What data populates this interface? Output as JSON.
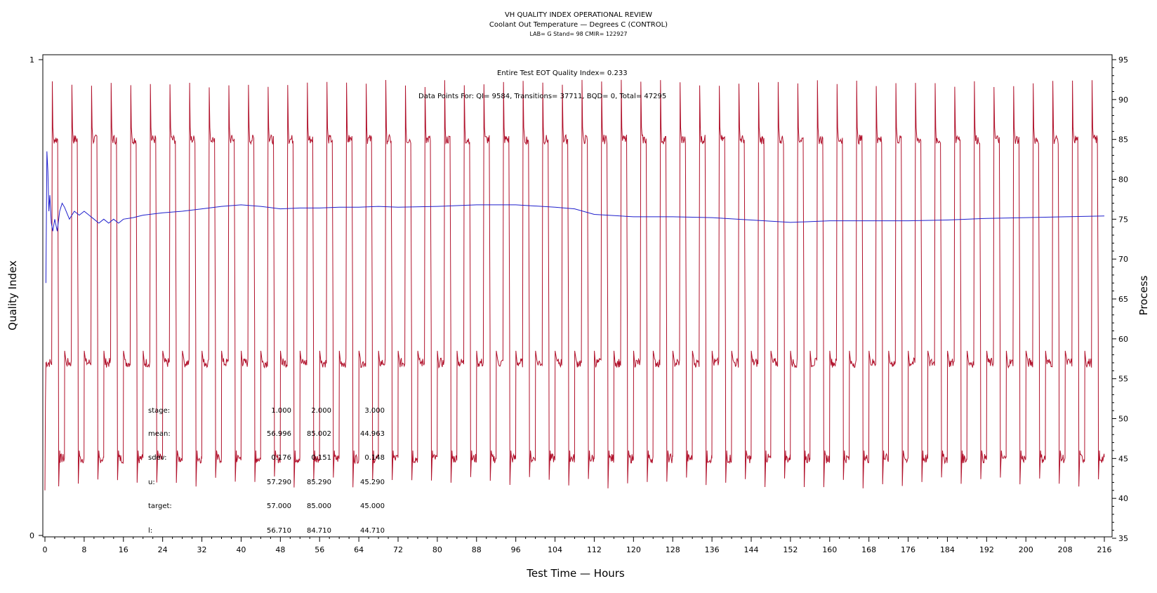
{
  "colors": {
    "process_line": "#b0102a",
    "quality_line": "#1f1fcc",
    "axis": "#000000",
    "background": "#ffffff"
  },
  "header": {
    "title": "VH QUALITY INDEX OPERATIONAL REVIEW",
    "subtitle": "Coolant Out Temperature — Degrees C (CONTROL)",
    "info": "LAB= G Stand= 98 CMIR= 122927"
  },
  "annotations": {
    "quality_index": "Entire Test EOT Quality Index=   0.233",
    "data_points": "Data Points For: QI=  9584, Transitions= 37711, BQD=     0, Total= 47295"
  },
  "stats_table": {
    "labels": [
      "stage:",
      "mean:",
      "sdev:",
      "u:",
      "target:",
      "l:"
    ],
    "columns": [
      [
        "1.000",
        "56.996",
        "0.176",
        "57.290",
        "57.000",
        "56.710"
      ],
      [
        "2.000",
        "85.002",
        "0.151",
        "85.290",
        "85.000",
        "84.710"
      ],
      [
        "3.000",
        "44.963",
        "0.148",
        "45.290",
        "45.000",
        "44.710"
      ]
    ]
  },
  "chart_data": {
    "type": "line",
    "title": "VH QUALITY INDEX OPERATIONAL REVIEW",
    "xlabel": "Test Time — Hours",
    "ylabel": "Quality Index",
    "y2label": "Process",
    "xlim": [
      0,
      216
    ],
    "ylim": [
      0,
      1
    ],
    "y2lim": [
      35,
      95
    ],
    "x_ticks": [
      0,
      8,
      16,
      24,
      32,
      40,
      48,
      56,
      64,
      72,
      80,
      88,
      96,
      104,
      112,
      120,
      128,
      136,
      144,
      152,
      160,
      168,
      176,
      184,
      192,
      200,
      208,
      216
    ],
    "y_ticks": [
      0,
      1
    ],
    "y2_ticks": [
      35,
      40,
      45,
      50,
      55,
      60,
      65,
      70,
      75,
      80,
      85,
      90,
      95
    ],
    "grid": false,
    "series": [
      {
        "name": "Process",
        "axis": "right",
        "stage_levels": [
          57,
          85,
          45
        ],
        "cycle_hours": 4,
        "overshoot_peak": 92,
        "undershoot_min": 42
      },
      {
        "name": "Quality Index",
        "axis": "right",
        "x": [
          0.2,
          0.4,
          0.6,
          0.8,
          1.0,
          1.3,
          1.6,
          2.0,
          2.5,
          3,
          3.5,
          4,
          5,
          6,
          7,
          8,
          9,
          10,
          11,
          12,
          13,
          14,
          15,
          16,
          18,
          20,
          24,
          28,
          32,
          36,
          40,
          44,
          48,
          52,
          56,
          60,
          64,
          68,
          72,
          80,
          88,
          96,
          104,
          108,
          112,
          120,
          128,
          136,
          144,
          152,
          160,
          168,
          176,
          184,
          192,
          200,
          208,
          216
        ],
        "y": [
          67,
          83.5,
          81,
          76,
          78,
          74.5,
          73.5,
          75,
          73.5,
          76,
          77,
          76.5,
          75,
          76,
          75.5,
          76,
          75.5,
          75,
          74.5,
          75,
          74.5,
          75,
          74.5,
          75,
          75.2,
          75.5,
          75.8,
          76,
          76.3,
          76.6,
          76.8,
          76.6,
          76.3,
          76.4,
          76.4,
          76.5,
          76.5,
          76.6,
          76.5,
          76.6,
          76.8,
          76.8,
          76.5,
          76.3,
          75.6,
          75.3,
          75.3,
          75.2,
          74.9,
          74.6,
          74.8,
          74.8,
          74.8,
          74.9,
          75.1,
          75.2,
          75.3,
          75.4
        ]
      }
    ]
  }
}
